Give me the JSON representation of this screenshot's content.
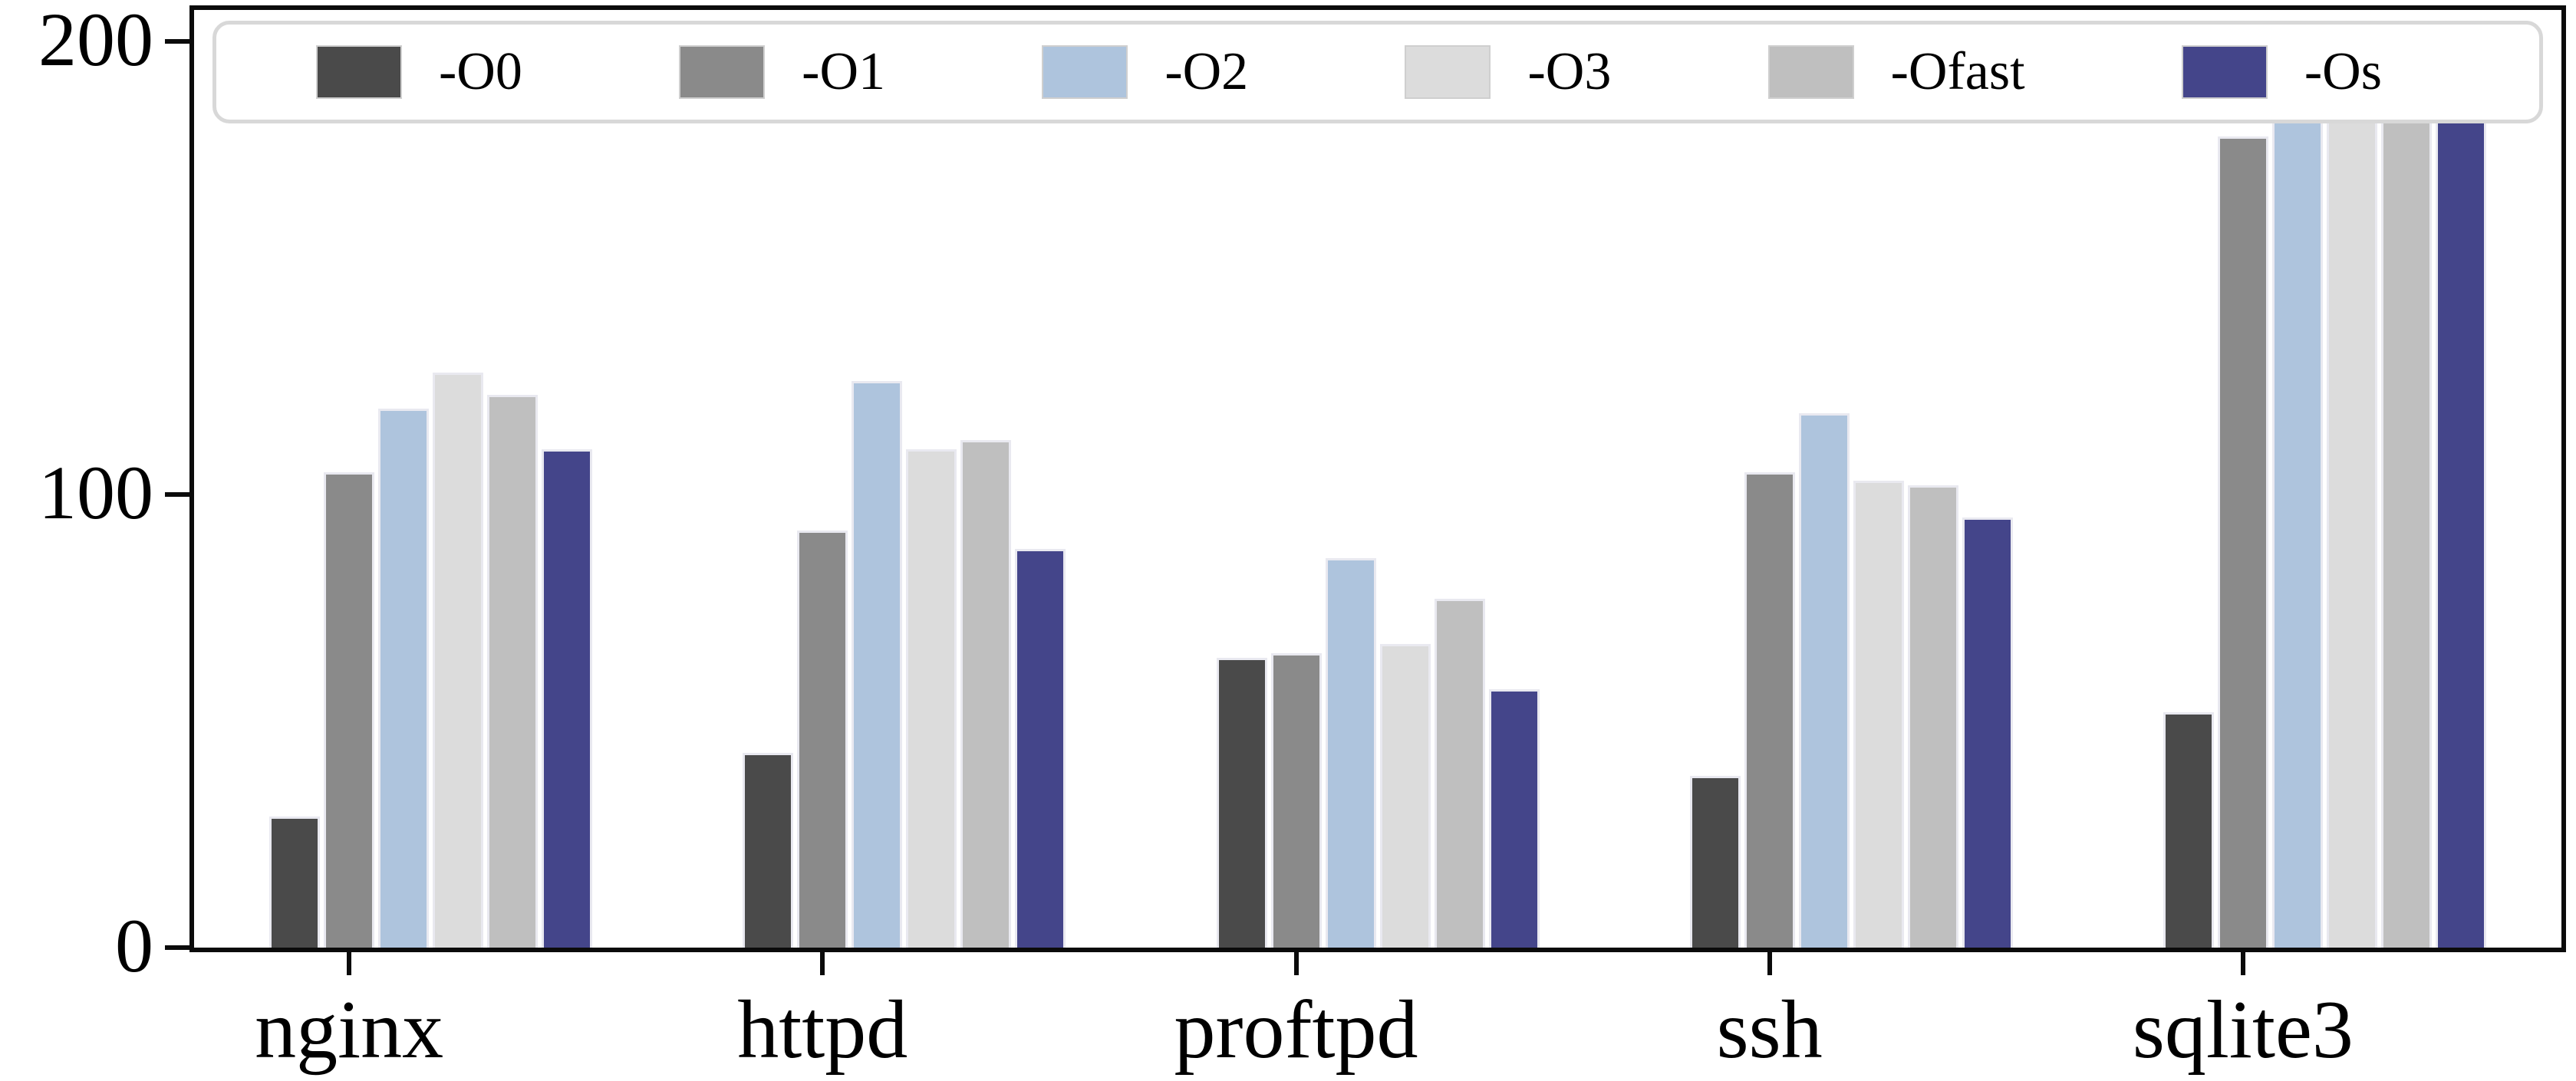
{
  "figure": {
    "background": "#ffffff",
    "axis_color": "#0b0b0b",
    "bar_edge_color": "#e9e9f0",
    "legend_border_color": "#d8d8d8"
  },
  "chart_data": {
    "type": "bar",
    "title": "",
    "xlabel": "",
    "ylabel": "",
    "categories": [
      "nginx",
      "httpd",
      "proftpd",
      "ssh",
      "sqlite3"
    ],
    "series": [
      {
        "name": "-O0",
        "color": "#4a4a4a",
        "values": [
          29,
          43,
          64,
          38,
          52
        ]
      },
      {
        "name": "-O1",
        "color": "#8a8a8a",
        "values": [
          105,
          92,
          65,
          105,
          179
        ]
      },
      {
        "name": "-O2",
        "color": "#aec4dd",
        "values": [
          119,
          125,
          86,
          118,
          187
        ]
      },
      {
        "name": "-O3",
        "color": "#dcdcdc",
        "values": [
          127,
          110,
          67,
          103,
          194
        ]
      },
      {
        "name": "-Ofast",
        "color": "#bfbfbf",
        "values": [
          122,
          112,
          77,
          102,
          199
        ]
      },
      {
        "name": "-Os",
        "color": "#44458a",
        "values": [
          110,
          88,
          57,
          95,
          183
        ]
      }
    ],
    "y_ticks": [
      0,
      100,
      200
    ],
    "ylim": [
      0,
      207
    ],
    "grid": false,
    "legend_position": "top-horizontal"
  }
}
